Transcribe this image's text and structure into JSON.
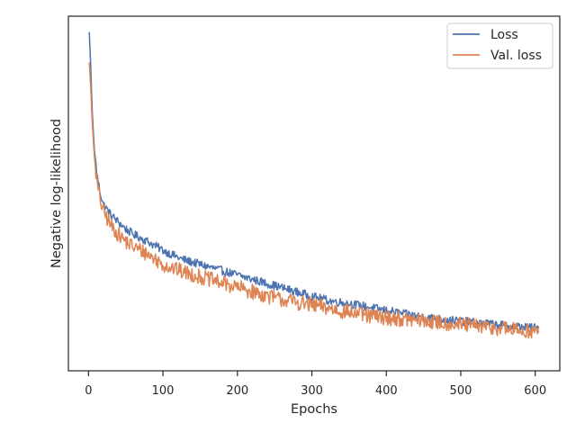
{
  "chart_data": {
    "type": "line",
    "title": "",
    "xlabel": "Epochs",
    "ylabel": "Negative log-likelihood",
    "xlim": [
      -27,
      633
    ],
    "ylim": [
      0,
      1
    ],
    "xticks": [
      0,
      100,
      200,
      300,
      400,
      500,
      600
    ],
    "yticks": [],
    "grid": false,
    "legend_position": "top-right",
    "series": [
      {
        "name": "Loss",
        "color": "#4c72b0",
        "noise_amplitude": 0.012,
        "points": [
          [
            1,
            0.955
          ],
          [
            3,
            0.86
          ],
          [
            5,
            0.73
          ],
          [
            8,
            0.62
          ],
          [
            12,
            0.545
          ],
          [
            16,
            0.5
          ],
          [
            20,
            0.47
          ],
          [
            25,
            0.455
          ],
          [
            30,
            0.44
          ],
          [
            40,
            0.42
          ],
          [
            50,
            0.4
          ],
          [
            60,
            0.385
          ],
          [
            75,
            0.37
          ],
          [
            100,
            0.34
          ],
          [
            125,
            0.315
          ],
          [
            150,
            0.3
          ],
          [
            175,
            0.285
          ],
          [
            200,
            0.27
          ],
          [
            225,
            0.255
          ],
          [
            250,
            0.24
          ],
          [
            275,
            0.225
          ],
          [
            300,
            0.21
          ],
          [
            325,
            0.197
          ],
          [
            350,
            0.19
          ],
          [
            375,
            0.18
          ],
          [
            400,
            0.17
          ],
          [
            425,
            0.16
          ],
          [
            450,
            0.152
          ],
          [
            475,
            0.145
          ],
          [
            500,
            0.14
          ],
          [
            525,
            0.135
          ],
          [
            550,
            0.13
          ],
          [
            575,
            0.125
          ],
          [
            605,
            0.12
          ]
        ]
      },
      {
        "name": "Val. loss",
        "color": "#dd8452",
        "noise_amplitude": 0.022,
        "points": [
          [
            1,
            0.87
          ],
          [
            3,
            0.8
          ],
          [
            5,
            0.7
          ],
          [
            8,
            0.6
          ],
          [
            12,
            0.52
          ],
          [
            16,
            0.48
          ],
          [
            20,
            0.45
          ],
          [
            25,
            0.43
          ],
          [
            30,
            0.41
          ],
          [
            40,
            0.385
          ],
          [
            50,
            0.365
          ],
          [
            60,
            0.35
          ],
          [
            75,
            0.335
          ],
          [
            100,
            0.3
          ],
          [
            125,
            0.28
          ],
          [
            150,
            0.265
          ],
          [
            175,
            0.25
          ],
          [
            200,
            0.235
          ],
          [
            225,
            0.22
          ],
          [
            250,
            0.205
          ],
          [
            275,
            0.195
          ],
          [
            300,
            0.185
          ],
          [
            325,
            0.175
          ],
          [
            350,
            0.165
          ],
          [
            375,
            0.155
          ],
          [
            400,
            0.15
          ],
          [
            425,
            0.145
          ],
          [
            450,
            0.14
          ],
          [
            475,
            0.135
          ],
          [
            500,
            0.13
          ],
          [
            525,
            0.125
          ],
          [
            550,
            0.12
          ],
          [
            575,
            0.115
          ],
          [
            605,
            0.11
          ]
        ]
      }
    ]
  }
}
